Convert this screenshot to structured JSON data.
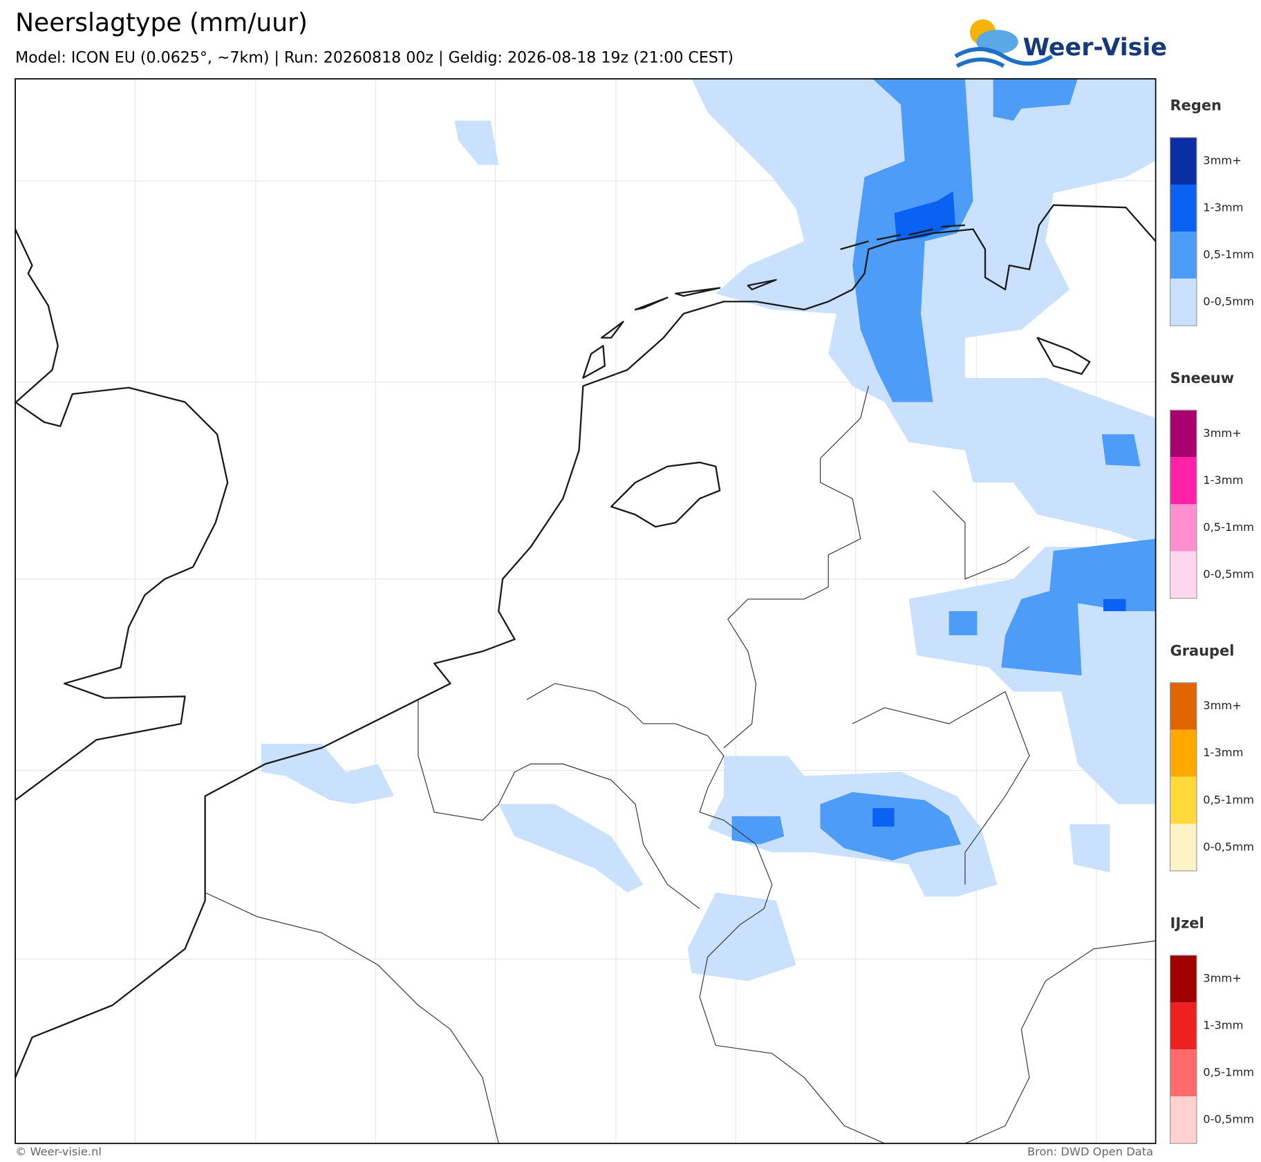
{
  "header": {
    "title": "Neerslagtype (mm/uur)",
    "subtitle": "Model: ICON EU (0.0625°, ~7km)  |  Run: 20260818 00z  |  Geldig: 2026-08-18 19z (21:00 CEST)",
    "logo": "Weer-Visie"
  },
  "legend": [
    {
      "title": "Regen",
      "colors": [
        "#0a2fa5",
        "#0b62f2",
        "#4d9cf7",
        "#c9e1fd"
      ],
      "labels": [
        "3mm+",
        "1-3mm",
        "0,5-1mm",
        "0-0,5mm"
      ]
    },
    {
      "title": "Sneeuw",
      "colors": [
        "#a8006e",
        "#ff22a8",
        "#ff8fcf",
        "#ffd6ee"
      ],
      "labels": [
        "3mm+",
        "1-3mm",
        "0,5-1mm",
        "0-0,5mm"
      ]
    },
    {
      "title": "Graupel",
      "colors": [
        "#e06400",
        "#ffa800",
        "#ffd83a",
        "#fff2c6"
      ],
      "labels": [
        "3mm+",
        "1-3mm",
        "0,5-1mm",
        "0-0,5mm"
      ]
    },
    {
      "title": "IJzel",
      "colors": [
        "#a00000",
        "#ee2020",
        "#ff6a6a",
        "#ffd0d0"
      ],
      "labels": [
        "3mm+",
        "1-3mm",
        "0,5-1mm",
        "0-0,5mm"
      ]
    }
  ],
  "footer": {
    "left": "© Weer-visie.nl",
    "right": "Bron: DWD Open Data"
  }
}
